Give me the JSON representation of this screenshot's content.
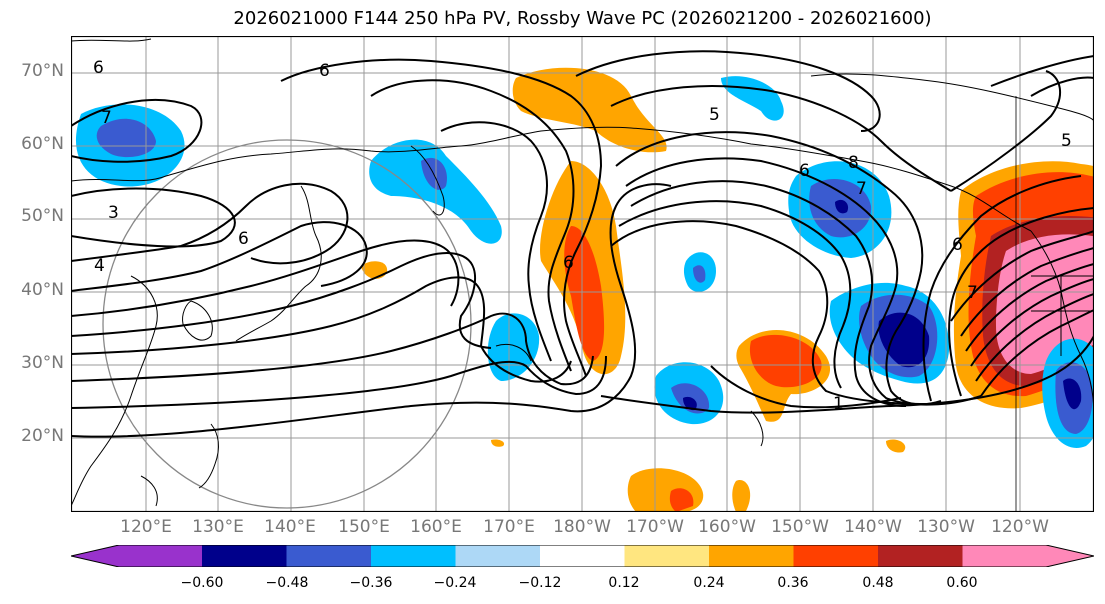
{
  "title": "2026021000 F144 250 hPa PV, Rossby Wave PC (2026021200 - 2026021600)",
  "lat_ticks": [
    "70°N",
    "60°N",
    "50°N",
    "40°N",
    "30°N",
    "20°N"
  ],
  "lon_ticks": [
    "120°E",
    "130°E",
    "140°E",
    "150°E",
    "160°E",
    "170°E",
    "180°W",
    "170°W",
    "160°W",
    "150°W",
    "140°W",
    "130°W",
    "120°W"
  ],
  "contour_labels": [
    "6",
    "6",
    "7",
    "3",
    "4",
    "6",
    "5",
    "8",
    "6",
    "7",
    "6",
    "1",
    "6",
    "5",
    "7"
  ],
  "colorbar": {
    "labels": [
      "−0.60",
      "−0.48",
      "−0.36",
      "−0.24",
      "−0.12",
      "0.12",
      "0.24",
      "0.36",
      "0.48",
      "0.60"
    ],
    "colors": [
      "#9932cc",
      "#00008b",
      "#3a5bd0",
      "#00bfff",
      "#add8f6",
      "#ffffff",
      "#ffe680",
      "#ffa500",
      "#ff4000",
      "#b22222",
      "#ff88b8"
    ]
  },
  "colors": {
    "gridline": "#999999",
    "coastline": "#000000",
    "contour": "#000000"
  }
}
